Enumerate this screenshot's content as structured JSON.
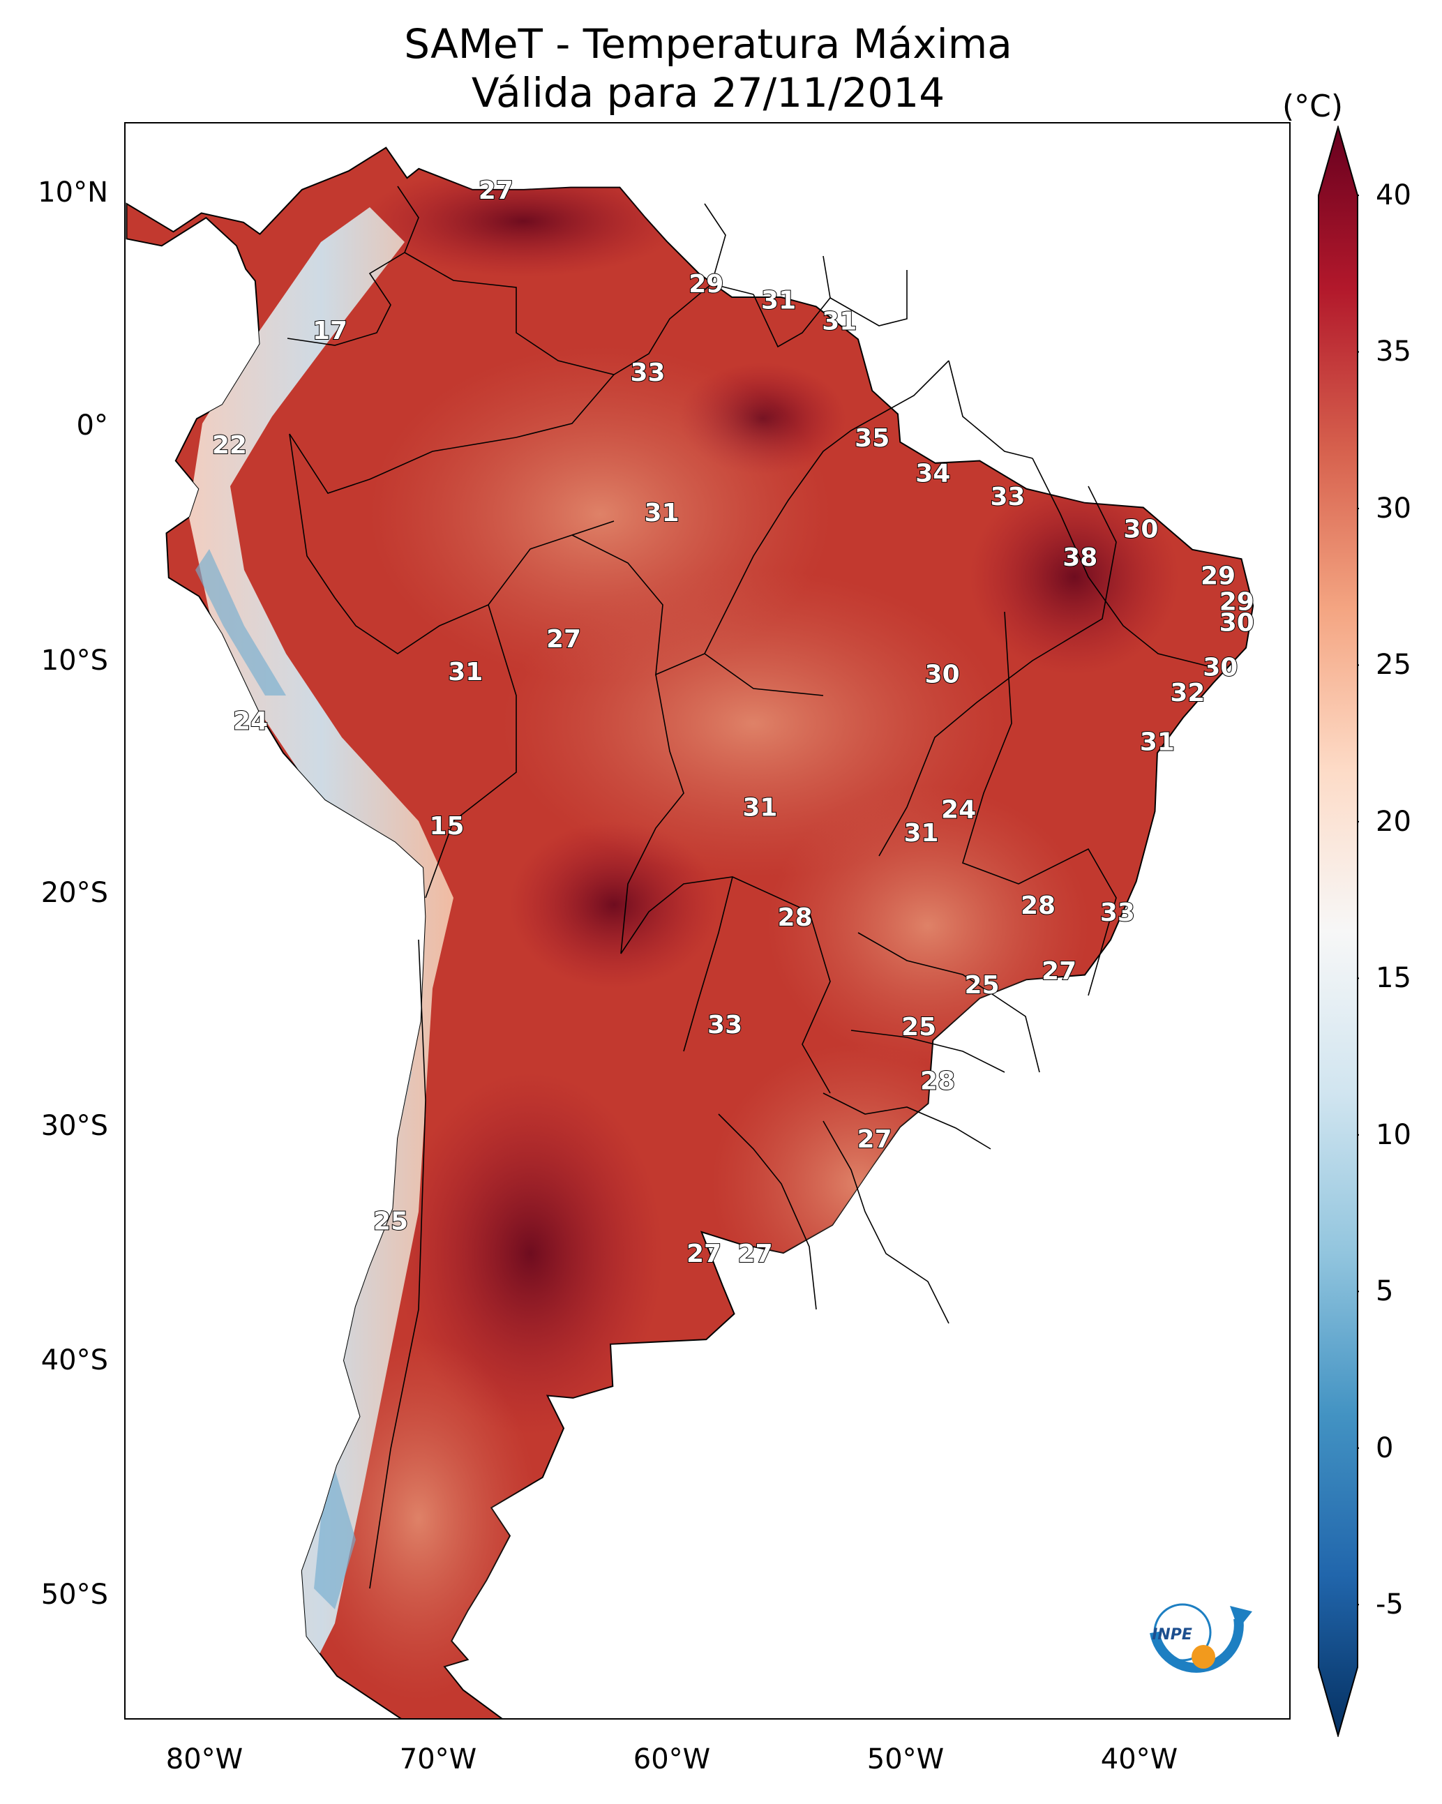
{
  "title": {
    "line1": "SAMeT - Temperatura Máxima",
    "line2": "Válida para 27/11/2014"
  },
  "map": {
    "lat_ticks": [
      "10°N",
      "0°",
      "10°S",
      "20°S",
      "30°S",
      "40°S",
      "50°S"
    ],
    "lon_ticks": [
      "80°W",
      "70°W",
      "60°W",
      "50°W",
      "40°W"
    ],
    "ocean_color": "#ffffff",
    "border_color": "#000000",
    "contour_labels": [
      {
        "value": "27",
        "lon": -67.2,
        "lat": 10.6
      },
      {
        "value": "17",
        "lon": -74.3,
        "lat": 4.6
      },
      {
        "value": "22",
        "lon": -78.6,
        "lat": -0.3
      },
      {
        "value": "29",
        "lon": -58.2,
        "lat": 6.6
      },
      {
        "value": "31",
        "lon": -55.1,
        "lat": 5.9
      },
      {
        "value": "31",
        "lon": -52.5,
        "lat": 5.0
      },
      {
        "value": "33",
        "lon": -60.7,
        "lat": 2.8
      },
      {
        "value": "35",
        "lon": -51.1,
        "lat": 0.0
      },
      {
        "value": "34",
        "lon": -48.5,
        "lat": -1.5
      },
      {
        "value": "31",
        "lon": -60.1,
        "lat": -3.2
      },
      {
        "value": "33",
        "lon": -45.3,
        "lat": -2.5
      },
      {
        "value": "30",
        "lon": -39.6,
        "lat": -3.9
      },
      {
        "value": "38",
        "lon": -42.2,
        "lat": -5.1
      },
      {
        "value": "29",
        "lon": -36.3,
        "lat": -5.9
      },
      {
        "value": "29",
        "lon": -35.5,
        "lat": -7.0
      },
      {
        "value": "30",
        "lon": -35.5,
        "lat": -7.9
      },
      {
        "value": "27",
        "lon": -64.3,
        "lat": -8.6
      },
      {
        "value": "31",
        "lon": -68.5,
        "lat": -10.0
      },
      {
        "value": "30",
        "lon": -48.1,
        "lat": -10.1
      },
      {
        "value": "30",
        "lon": -36.2,
        "lat": -9.8
      },
      {
        "value": "32",
        "lon": -37.6,
        "lat": -10.9
      },
      {
        "value": "24",
        "lon": -77.7,
        "lat": -12.1
      },
      {
        "value": "31",
        "lon": -38.9,
        "lat": -13.0
      },
      {
        "value": "31",
        "lon": -55.9,
        "lat": -15.8
      },
      {
        "value": "24",
        "lon": -47.4,
        "lat": -15.9
      },
      {
        "value": "31",
        "lon": -49.0,
        "lat": -16.9
      },
      {
        "value": "15",
        "lon": -69.3,
        "lat": -16.6
      },
      {
        "value": "28",
        "lon": -44.0,
        "lat": -20.0
      },
      {
        "value": "33",
        "lon": -40.6,
        "lat": -20.3
      },
      {
        "value": "28",
        "lon": -54.4,
        "lat": -20.5
      },
      {
        "value": "27",
        "lon": -43.1,
        "lat": -22.8
      },
      {
        "value": "25",
        "lon": -46.4,
        "lat": -23.4
      },
      {
        "value": "33",
        "lon": -57.4,
        "lat": -25.1
      },
      {
        "value": "25",
        "lon": -49.1,
        "lat": -25.2
      },
      {
        "value": "28",
        "lon": -48.3,
        "lat": -27.5
      },
      {
        "value": "27",
        "lon": -51.0,
        "lat": -30.0
      },
      {
        "value": "25",
        "lon": -71.7,
        "lat": -33.5
      },
      {
        "value": "27",
        "lon": -58.3,
        "lat": -34.9
      },
      {
        "value": "27",
        "lon": -56.1,
        "lat": -34.9
      }
    ]
  },
  "colorbar": {
    "unit": "(°C)",
    "ticks": [
      "40",
      "35",
      "30",
      "25",
      "20",
      "15",
      "10",
      "5",
      "0",
      "-5"
    ],
    "min": -7,
    "max": 40,
    "colors": [
      "#053061",
      "#2166ac",
      "#4393c3",
      "#92c5de",
      "#d1e5f0",
      "#f7f7f7",
      "#fddbc7",
      "#f4a582",
      "#d6604d",
      "#b2182b",
      "#67001f"
    ]
  },
  "logo": {
    "text": "INPE"
  }
}
